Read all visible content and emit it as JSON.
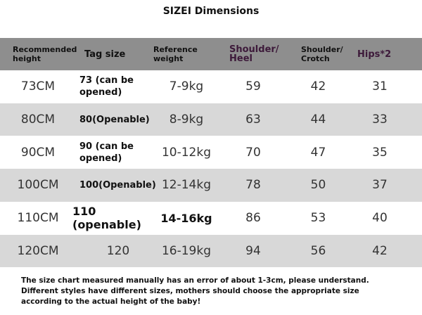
{
  "title": "SIZEI Dimensions",
  "table": {
    "header": [
      "Recommended height",
      "Tag size",
      "Reference weight",
      "Shoulder/ Heel",
      "Shoulder/ Crotch",
      "Hips*2"
    ],
    "rows": [
      [
        "73CM",
        "73 (can be opened)",
        "7-9kg",
        59,
        42,
        31
      ],
      [
        "80CM",
        "80(Openable)",
        "8-9kg",
        63,
        44,
        33
      ],
      [
        "90CM",
        "90 (can be opened)",
        "10-12kg",
        70,
        47,
        35
      ],
      [
        "100CM",
        "100(Openable)",
        "12-14kg",
        78,
        50,
        37
      ],
      [
        "110CM",
        "110 (openable)",
        "14-16kg",
        86,
        53,
        40
      ],
      [
        "120CM",
        "120",
        "16-19kg",
        94,
        56,
        42
      ]
    ]
  },
  "note": [
    "The size chart measured manually has an error of about 1-3cm, please understand.",
    "Different styles have different sizes, mothers should choose the appropriate size",
    "according to the actual height of the baby!"
  ]
}
